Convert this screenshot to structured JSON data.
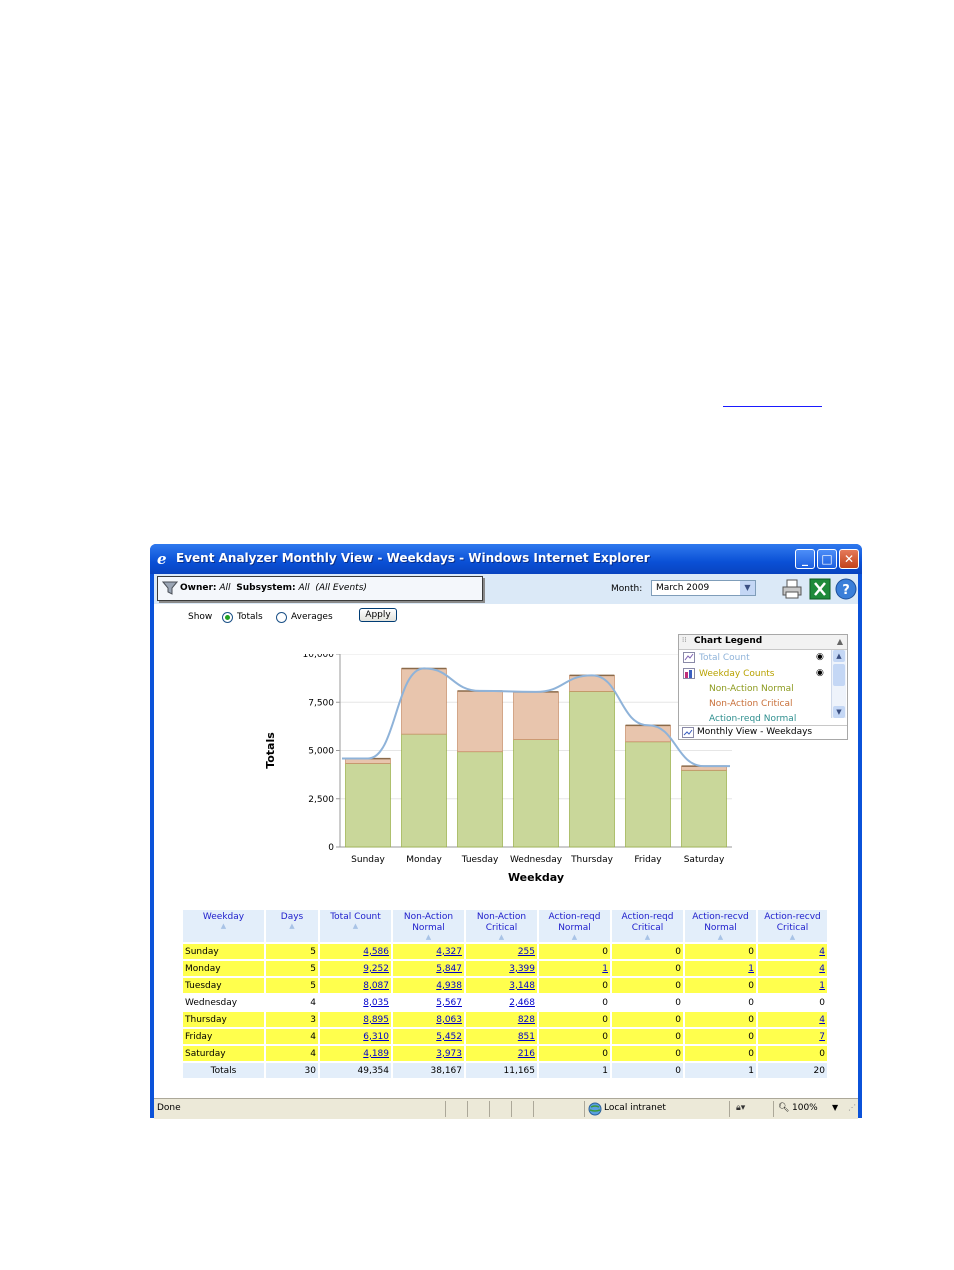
{
  "window": {
    "title": "Event Analyzer Monthly View - Weekdays - Windows Internet Explorer"
  },
  "filter": {
    "owner_label": "Owner:",
    "owner_value": "All",
    "subsystem_label": "Subsystem:",
    "subsystem_value": "All",
    "events_value": "(All Events)"
  },
  "month": {
    "label": "Month:",
    "selected": "March 2009"
  },
  "show": {
    "label": "Show",
    "totals_label": "Totals",
    "averages_label": "Averages",
    "selected": "Totals",
    "apply_label": "Apply"
  },
  "legend": {
    "title": "Chart Legend",
    "items": [
      {
        "label": "Total Count",
        "color": "#8fb3d9",
        "icon": "line-chart-icon"
      },
      {
        "label": "Weekday Counts",
        "color": "#b8a200",
        "icon": "bar-chart-icon"
      },
      {
        "label": "Non-Action Normal",
        "color": "#8c9a1e"
      },
      {
        "label": "Non-Action Critical",
        "color": "#c8703a"
      },
      {
        "label": "Action-reqd Normal",
        "color": "#2f8f8f"
      }
    ],
    "footer": "Monthly View - Weekdays"
  },
  "chart_data": {
    "type": "bar",
    "categories": [
      "Sunday",
      "Monday",
      "Tuesday",
      "Wednesday",
      "Thursday",
      "Friday",
      "Saturday"
    ],
    "series": [
      {
        "name": "Non-Action Normal",
        "values": [
          4327,
          5847,
          4938,
          5567,
          8063,
          5452,
          3973
        ],
        "color": "#c9d79a"
      },
      {
        "name": "Non-Action Critical",
        "values": [
          255,
          3399,
          3148,
          2468,
          828,
          851,
          216
        ],
        "color": "#e8c5ad"
      },
      {
        "name": "Total Count",
        "type": "line",
        "values": [
          4586,
          9252,
          8087,
          8035,
          8895,
          6310,
          4189
        ],
        "color": "#8fb3d9"
      }
    ],
    "xlabel": "Weekday",
    "ylabel": "Totals",
    "ylim": [
      0,
      10000
    ],
    "yticks": [
      "10,000",
      "7,500",
      "5,000",
      "2,500",
      "0"
    ],
    "grid": true
  },
  "table": {
    "headers": [
      "Weekday",
      "Days",
      "Total Count",
      "Non-Action Normal",
      "Non-Action Critical",
      "Action-reqd Normal",
      "Action-reqd Critical",
      "Action-recvd Normal",
      "Action-recvd Critical"
    ],
    "rows": [
      [
        "Sunday",
        "5",
        "4,586",
        "4,327",
        "255",
        "0",
        "0",
        "0",
        "4"
      ],
      [
        "Monday",
        "5",
        "9,252",
        "5,847",
        "3,399",
        "1",
        "0",
        "1",
        "4"
      ],
      [
        "Tuesday",
        "5",
        "8,087",
        "4,938",
        "3,148",
        "0",
        "0",
        "0",
        "1"
      ],
      [
        "Wednesday",
        "4",
        "8,035",
        "5,567",
        "2,468",
        "0",
        "0",
        "0",
        "0"
      ],
      [
        "Thursday",
        "3",
        "8,895",
        "8,063",
        "828",
        "0",
        "0",
        "0",
        "4"
      ],
      [
        "Friday",
        "4",
        "6,310",
        "5,452",
        "851",
        "0",
        "0",
        "0",
        "7"
      ],
      [
        "Saturday",
        "4",
        "4,189",
        "3,973",
        "216",
        "0",
        "0",
        "0",
        "0"
      ]
    ],
    "totals": [
      "Totals",
      "30",
      "49,354",
      "38,167",
      "11,165",
      "1",
      "0",
      "1",
      "20"
    ]
  },
  "statusbar": {
    "status": "Done",
    "zone": "Local intranet",
    "zoom": "100%"
  }
}
